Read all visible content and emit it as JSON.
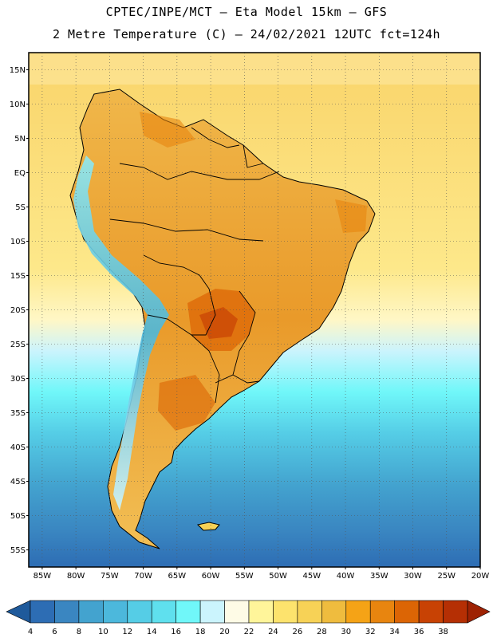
{
  "header": {
    "line1": "CPTEC/INPE/MCT –  Eta Model 15km – GFS",
    "line2": "2 Metre Temperature (C) – 24/02/2021 12UTC fct=124h"
  },
  "map": {
    "lat_labels": [
      "15N",
      "10N",
      "5N",
      "EQ",
      "5S",
      "10S",
      "15S",
      "20S",
      "25S",
      "30S",
      "35S",
      "40S",
      "45S",
      "50S",
      "55S"
    ],
    "lon_labels": [
      "85W",
      "80W",
      "75W",
      "70W",
      "65W",
      "60W",
      "55W",
      "50W",
      "45W",
      "40W",
      "35W",
      "30W",
      "25W",
      "20W"
    ],
    "lat_range": [
      -57.5,
      17.5
    ],
    "lon_range": [
      -87,
      -20
    ]
  },
  "legend": {
    "labels": [
      "4",
      "6",
      "8",
      "10",
      "12",
      "14",
      "16",
      "18",
      "20",
      "22",
      "24",
      "26",
      "28",
      "30",
      "32",
      "34",
      "36",
      "38"
    ],
    "colors": [
      "#2d6db4",
      "#3a86c1",
      "#43a3cf",
      "#4cb8dc",
      "#55cde6",
      "#5fe0ee",
      "#70f7f9",
      "#cbf4fd",
      "#fefbe6",
      "#fff59a",
      "#fde36d",
      "#f7d256",
      "#efbc3e",
      "#f5a316",
      "#e8850f",
      "#dc6505",
      "#c84204",
      "#b52f04"
    ],
    "low_arrow_color": "#1f5a9b",
    "high_arrow_color": "#9e2203"
  }
}
